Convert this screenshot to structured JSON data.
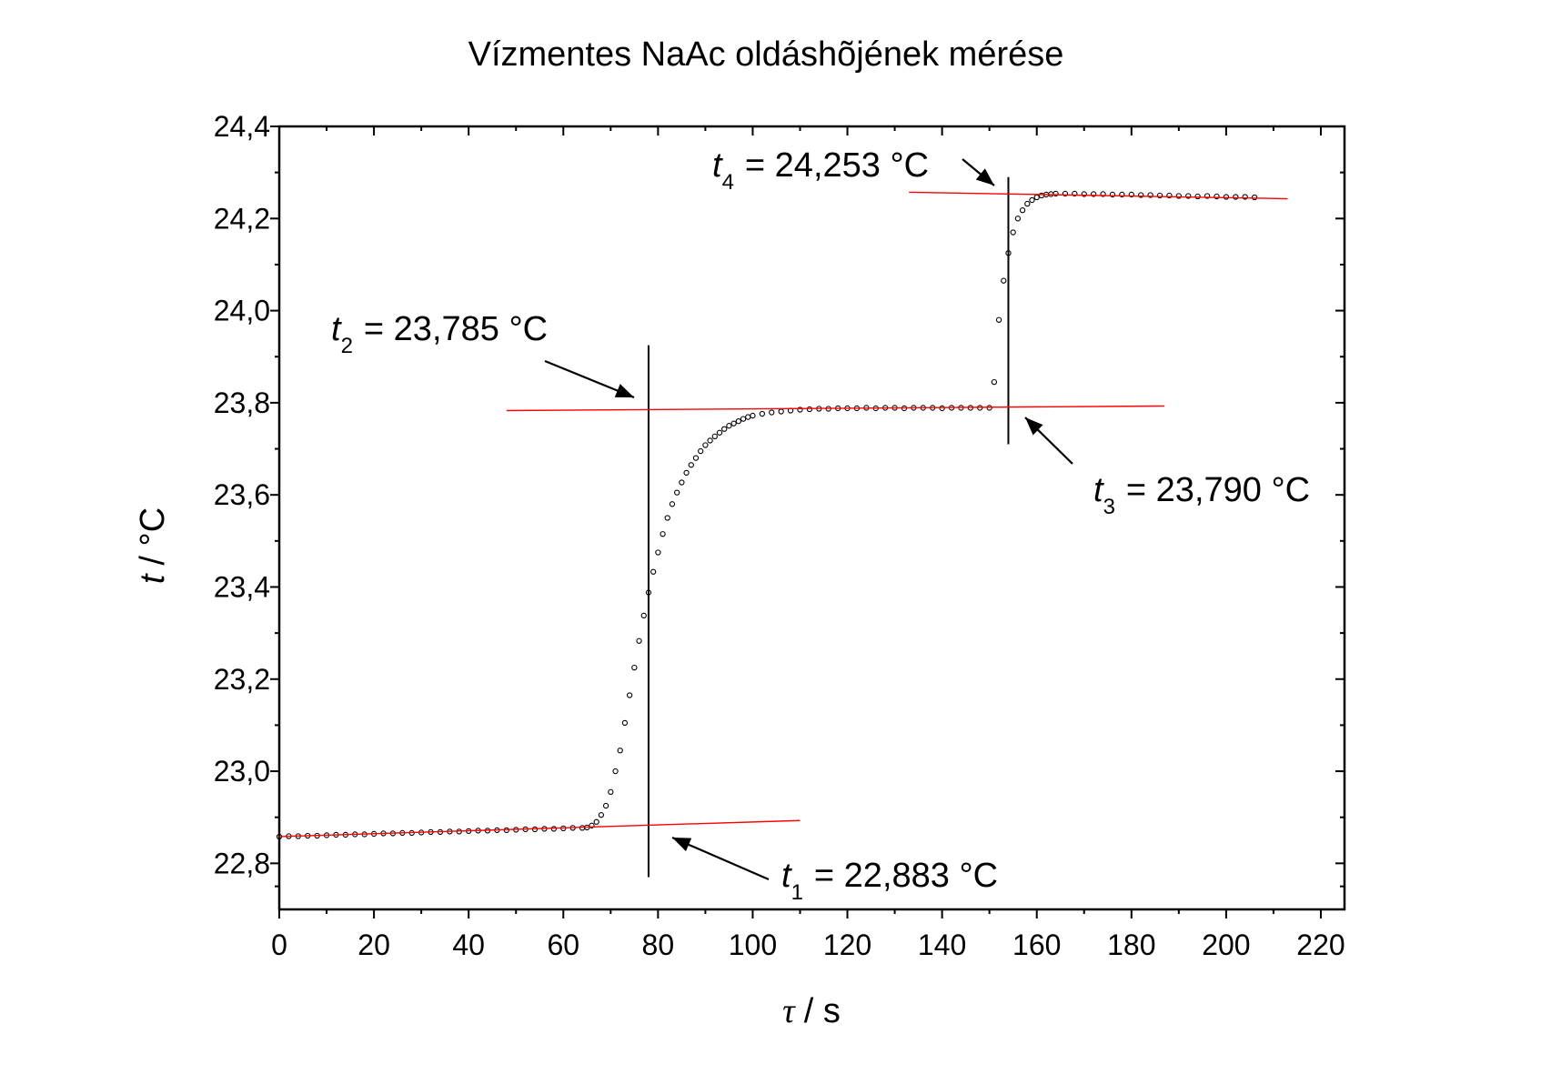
{
  "chart_data": {
    "type": "scatter",
    "title": "Vízmentes NaAc oldáshõjének mérése",
    "xlabel_symbol": "τ",
    "xlabel_unit": "/ s",
    "ylabel_symbol": "t",
    "ylabel_unit": "/ °C",
    "x": [
      0,
      2,
      4,
      6,
      8,
      10,
      12,
      14,
      16,
      18,
      20,
      22,
      24,
      26,
      28,
      30,
      32,
      34,
      36,
      38,
      40,
      42,
      44,
      46,
      48,
      50,
      52,
      54,
      56,
      58,
      60,
      62,
      64,
      65,
      66,
      67,
      68,
      69,
      70,
      71,
      72,
      73,
      74,
      75,
      76,
      77,
      78,
      79,
      80,
      81,
      82,
      83,
      84,
      85,
      86,
      87,
      88,
      89,
      90,
      91,
      92,
      93,
      94,
      95,
      96,
      97,
      98,
      99,
      100,
      102,
      104,
      106,
      108,
      110,
      112,
      114,
      116,
      118,
      120,
      122,
      124,
      126,
      128,
      130,
      132,
      134,
      136,
      138,
      140,
      142,
      144,
      146,
      148,
      150,
      151,
      152,
      153,
      154,
      155,
      156,
      157,
      158,
      159,
      160,
      161,
      162,
      163,
      164,
      166,
      168,
      170,
      172,
      174,
      176,
      178,
      180,
      182,
      184,
      186,
      188,
      190,
      192,
      194,
      196,
      198,
      200,
      202,
      204,
      206
    ],
    "values": [
      22.858,
      22.859,
      22.859,
      22.86,
      22.86,
      22.861,
      22.862,
      22.862,
      22.863,
      22.863,
      22.864,
      22.865,
      22.865,
      22.866,
      22.866,
      22.867,
      22.868,
      22.868,
      22.869,
      22.869,
      22.87,
      22.871,
      22.871,
      22.872,
      22.872,
      22.873,
      22.874,
      22.874,
      22.875,
      22.875,
      22.876,
      22.877,
      22.877,
      22.878,
      22.882,
      22.89,
      22.905,
      22.925,
      22.955,
      23.0,
      23.045,
      23.105,
      23.165,
      23.225,
      23.283,
      23.338,
      23.388,
      23.433,
      23.475,
      23.515,
      23.55,
      23.58,
      23.605,
      23.627,
      23.648,
      23.665,
      23.68,
      23.695,
      23.708,
      23.718,
      23.727,
      23.735,
      23.743,
      23.75,
      23.755,
      23.76,
      23.765,
      23.769,
      23.772,
      23.776,
      23.779,
      23.781,
      23.783,
      23.785,
      23.786,
      23.787,
      23.787,
      23.788,
      23.788,
      23.788,
      23.789,
      23.788,
      23.789,
      23.789,
      23.788,
      23.789,
      23.789,
      23.789,
      23.788,
      23.789,
      23.789,
      23.789,
      23.789,
      23.789,
      23.845,
      23.98,
      24.065,
      24.125,
      24.17,
      24.2,
      24.218,
      24.232,
      24.24,
      24.246,
      24.25,
      24.252,
      24.253,
      24.254,
      24.254,
      24.254,
      24.253,
      24.253,
      24.253,
      24.252,
      24.252,
      24.252,
      24.251,
      24.251,
      24.25,
      24.25,
      24.249,
      24.249,
      24.248,
      24.249,
      24.248,
      24.247,
      24.247,
      24.247,
      24.246
    ],
    "color": "#000000",
    "xlim": [
      0,
      225
    ],
    "ylim": [
      22.7,
      24.4
    ],
    "xticks": [
      0,
      20,
      40,
      60,
      80,
      100,
      120,
      140,
      160,
      180,
      200,
      220
    ],
    "yticks": [
      {
        "value": 22.8,
        "label": "22,8"
      },
      {
        "value": 23.0,
        "label": "23,0"
      },
      {
        "value": 23.2,
        "label": "23,2"
      },
      {
        "value": 23.4,
        "label": "23,4"
      },
      {
        "value": 23.6,
        "label": "23,6"
      },
      {
        "value": 23.8,
        "label": "23,8"
      },
      {
        "value": 24.0,
        "label": "24,0"
      },
      {
        "value": 24.2,
        "label": "24,2"
      },
      {
        "value": 24.4,
        "label": "24,4"
      }
    ],
    "fit_color": "#ff0000",
    "fit_lines": [
      {
        "x": [
          0,
          110
        ],
        "y": [
          22.858,
          22.893
        ]
      },
      {
        "x": [
          48,
          187
        ],
        "y": [
          23.783,
          23.793
        ]
      },
      {
        "x": [
          133,
          213
        ],
        "y": [
          24.257,
          24.243
        ]
      }
    ],
    "vertical_lines": [
      {
        "x": 78,
        "y": [
          22.77,
          23.925
        ]
      },
      {
        "x": 154,
        "y": [
          23.71,
          24.29
        ]
      }
    ],
    "annotations": [
      {
        "symbol": "t",
        "sub": "1",
        "text": "= 22,883 °C"
      },
      {
        "symbol": "t",
        "sub": "2",
        "text": "= 23,785 °C"
      },
      {
        "symbol": "t",
        "sub": "3",
        "text": "= 23,790 °C"
      },
      {
        "symbol": "t",
        "sub": "4",
        "text": "= 24,253 °C"
      }
    ]
  }
}
